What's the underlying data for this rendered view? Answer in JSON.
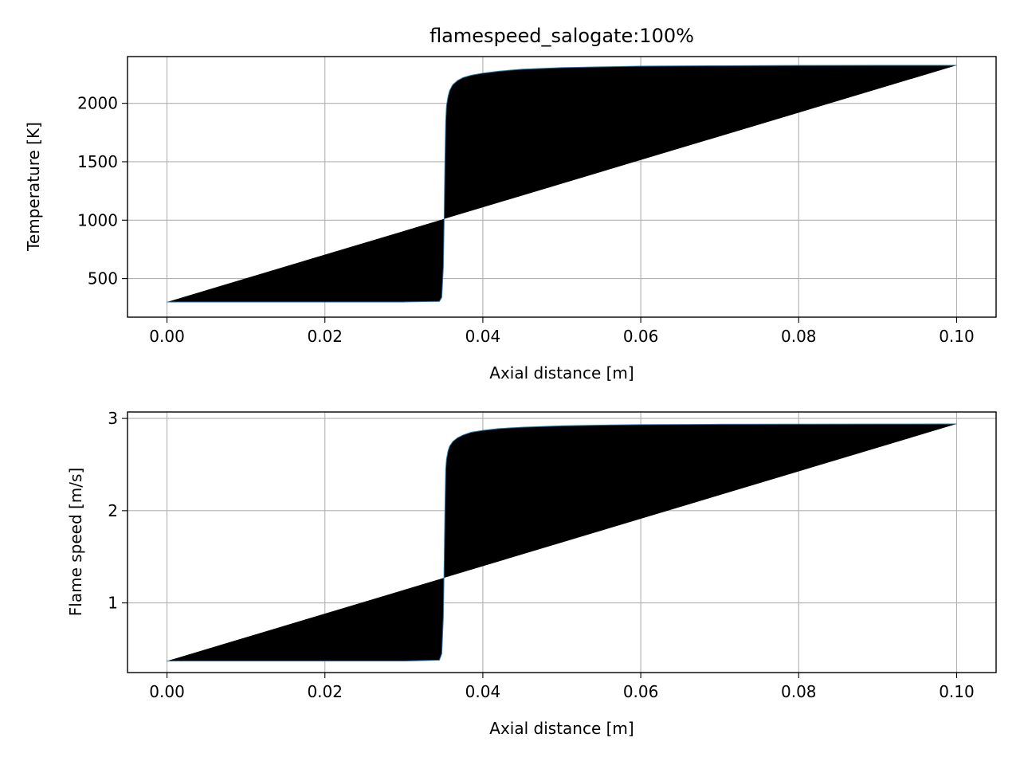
{
  "chart_data": [
    {
      "type": "line",
      "title": "flamespeed_salogate:100%",
      "xlabel": "Axial distance [m]",
      "ylabel": "Temperature [K]",
      "xlim": [
        -0.005,
        0.105
      ],
      "ylim": [
        170,
        2400
      ],
      "xticks": [
        0.0,
        0.02,
        0.04,
        0.06,
        0.08,
        0.1
      ],
      "xtick_labels": [
        "0.00",
        "0.02",
        "0.04",
        "0.06",
        "0.08",
        "0.10"
      ],
      "yticks": [
        500,
        1000,
        1500,
        2000
      ],
      "ytick_labels": [
        "500",
        "1000",
        "1500",
        "2000"
      ],
      "grid": true,
      "color": "#1f77b4",
      "series": [
        {
          "x": [
            0.0,
            0.01,
            0.02,
            0.03,
            0.0345,
            0.0348,
            0.035,
            0.0351,
            0.0352,
            0.0353,
            0.0354,
            0.0356,
            0.0358,
            0.0362,
            0.0368,
            0.0375,
            0.0385,
            0.04,
            0.042,
            0.045,
            0.05,
            0.055,
            0.06,
            0.07,
            0.08,
            0.09,
            0.1
          ],
          "y": [
            300,
            300,
            300,
            300,
            305,
            340,
            600,
            1000,
            1500,
            1850,
            1980,
            2060,
            2110,
            2160,
            2195,
            2220,
            2240,
            2258,
            2275,
            2292,
            2305,
            2312,
            2318,
            2322,
            2324,
            2325,
            2325
          ]
        }
      ]
    },
    {
      "type": "line",
      "title": "",
      "xlabel": "Axial distance [m]",
      "ylabel": "Flame speed [m/s]",
      "xlim": [
        -0.005,
        0.105
      ],
      "ylim": [
        0.245,
        3.07
      ],
      "xticks": [
        0.0,
        0.02,
        0.04,
        0.06,
        0.08,
        0.1
      ],
      "xtick_labels": [
        "0.00",
        "0.02",
        "0.04",
        "0.06",
        "0.08",
        "0.10"
      ],
      "yticks": [
        1,
        2,
        3
      ],
      "ytick_labels": [
        "1",
        "2",
        "3"
      ],
      "grid": true,
      "color": "#1f77b4",
      "series": [
        {
          "x": [
            0.0,
            0.01,
            0.02,
            0.03,
            0.0345,
            0.0348,
            0.035,
            0.0351,
            0.0352,
            0.0353,
            0.0354,
            0.0356,
            0.0358,
            0.0362,
            0.0368,
            0.0375,
            0.0385,
            0.04,
            0.042,
            0.045,
            0.05,
            0.055,
            0.06,
            0.07,
            0.08,
            0.09,
            0.1
          ],
          "y": [
            0.37,
            0.37,
            0.37,
            0.37,
            0.38,
            0.45,
            0.85,
            1.4,
            2.0,
            2.45,
            2.56,
            2.65,
            2.7,
            2.75,
            2.79,
            2.82,
            2.85,
            2.87,
            2.89,
            2.905,
            2.92,
            2.928,
            2.933,
            2.937,
            2.938,
            2.939,
            2.94
          ]
        }
      ]
    }
  ]
}
